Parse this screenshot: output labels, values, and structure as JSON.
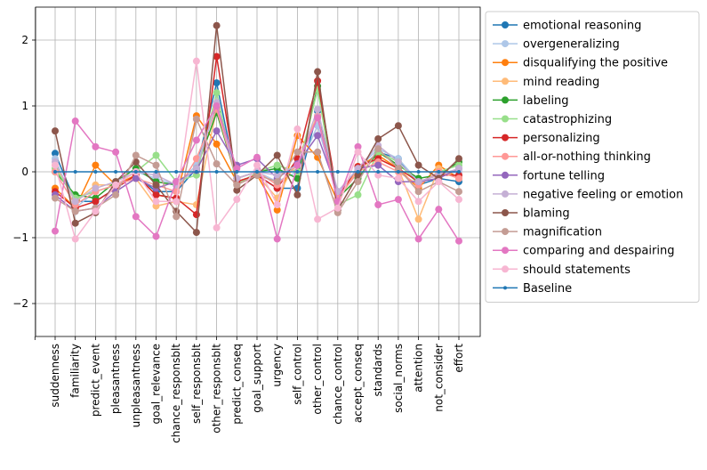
{
  "chart_data": {
    "type": "line",
    "title": "",
    "xlabel": "",
    "ylabel": "",
    "ylim": [
      -2.5,
      2.5
    ],
    "yticks": [
      -2,
      -1,
      0,
      1,
      2
    ],
    "grid": true,
    "legend_position": "outside-right",
    "categories": [
      "suddenness",
      "familiarity",
      "predict_event",
      "pleasantness",
      "unpleasantness",
      "goal_relevance",
      "chance_responsblt",
      "self_responsblt",
      "other_responsblt",
      "predict_conseq",
      "goal_support",
      "urgency",
      "self_control",
      "other_control",
      "chance_control",
      "accept_conseq",
      "standards",
      "social_norms",
      "attention",
      "not_consider",
      "effort"
    ],
    "series": [
      {
        "name": "emotional reasoning",
        "color": "#1f77b4",
        "values": [
          0.28,
          -0.45,
          -0.45,
          -0.25,
          -0.05,
          -0.3,
          -0.3,
          0.05,
          1.35,
          -0.15,
          -0.05,
          -0.25,
          -0.25,
          0.92,
          -0.4,
          0.0,
          0.3,
          0.2,
          -0.2,
          -0.1,
          -0.15
        ]
      },
      {
        "name": "overgeneralizing",
        "color": "#aec7e8",
        "values": [
          0.2,
          -0.55,
          -0.3,
          -0.2,
          0.0,
          -0.1,
          -0.2,
          0.1,
          1.0,
          -0.1,
          0.0,
          -0.15,
          0.0,
          0.7,
          -0.35,
          0.05,
          0.35,
          0.2,
          -0.15,
          -0.05,
          0.0
        ]
      },
      {
        "name": "disqualifying the positive",
        "color": "#ff7f0e",
        "values": [
          -0.25,
          -0.55,
          0.1,
          -0.2,
          -0.05,
          -0.35,
          -0.4,
          0.85,
          0.42,
          -0.15,
          -0.05,
          -0.58,
          0.55,
          0.22,
          -0.45,
          0.08,
          0.25,
          0.05,
          -0.25,
          0.1,
          -0.1
        ]
      },
      {
        "name": "mind reading",
        "color": "#ffbb78",
        "values": [
          0.1,
          -0.45,
          -0.2,
          -0.2,
          -0.1,
          -0.52,
          -0.45,
          -0.5,
          0.95,
          -0.15,
          -0.05,
          -0.4,
          0.2,
          0.85,
          -0.45,
          0.05,
          0.2,
          0.05,
          -0.72,
          0.05,
          -0.1
        ]
      },
      {
        "name": "labeling",
        "color": "#2ca02c",
        "values": [
          0.0,
          -0.35,
          -0.4,
          -0.15,
          0.05,
          -0.15,
          -0.2,
          0.05,
          0.9,
          -0.1,
          0.0,
          0.05,
          -0.1,
          1.3,
          -0.4,
          -0.1,
          0.3,
          0.1,
          -0.1,
          -0.05,
          0.15
        ]
      },
      {
        "name": "catastrophizing",
        "color": "#98df8a",
        "values": [
          0.05,
          -0.4,
          -0.3,
          -0.2,
          0.0,
          0.25,
          -0.15,
          -0.05,
          1.2,
          -0.2,
          0.0,
          0.1,
          0.0,
          1.25,
          -0.5,
          -0.35,
          0.3,
          0.15,
          -0.2,
          0.0,
          0.1
        ]
      },
      {
        "name": "personalizing",
        "color": "#d62728",
        "values": [
          -0.3,
          -0.55,
          -0.45,
          -0.25,
          -0.05,
          -0.35,
          -0.4,
          -0.65,
          1.75,
          -0.15,
          -0.05,
          -0.25,
          0.2,
          1.38,
          -0.4,
          0.08,
          0.2,
          0.05,
          -0.15,
          -0.05,
          -0.05
        ]
      },
      {
        "name": "all-or-nothing thinking",
        "color": "#ff9896",
        "values": [
          0.0,
          -0.5,
          -0.3,
          -0.2,
          -0.1,
          -0.2,
          -0.3,
          0.2,
          0.95,
          -0.1,
          0.0,
          -0.2,
          0.1,
          0.85,
          -0.4,
          0.0,
          0.15,
          0.0,
          -0.2,
          0.0,
          -0.1
        ]
      },
      {
        "name": "fortune telling",
        "color": "#9467bd",
        "values": [
          -0.35,
          -0.6,
          -0.55,
          -0.3,
          -0.1,
          -0.25,
          -0.15,
          0.02,
          0.62,
          0.1,
          0.2,
          -0.1,
          0.12,
          0.55,
          -0.3,
          0.05,
          0.1,
          -0.15,
          -0.15,
          -0.1,
          0.05
        ]
      },
      {
        "name": "negative feeling or emotion",
        "color": "#c5b0d5",
        "values": [
          0.15,
          -0.45,
          -0.25,
          -0.15,
          0.0,
          -0.05,
          -0.2,
          0.05,
          1.05,
          -0.1,
          0.0,
          -0.05,
          0.1,
          0.95,
          -0.3,
          0.05,
          0.4,
          0.15,
          -0.15,
          -0.05,
          0.05
        ]
      },
      {
        "name": "blaming",
        "color": "#8c564b",
        "values": [
          0.62,
          -0.78,
          -0.62,
          -0.15,
          0.15,
          -0.2,
          -0.6,
          -0.92,
          2.22,
          -0.28,
          -0.05,
          0.25,
          -0.35,
          1.52,
          -0.58,
          -0.05,
          0.5,
          0.7,
          0.1,
          -0.1,
          0.2
        ]
      },
      {
        "name": "magnification",
        "color": "#c49c94",
        "values": [
          -0.4,
          -0.6,
          -0.55,
          -0.35,
          0.25,
          0.1,
          -0.68,
          0.8,
          0.12,
          -0.2,
          -0.05,
          -0.15,
          0.3,
          0.3,
          -0.62,
          -0.15,
          0.35,
          0.05,
          -0.3,
          -0.15,
          -0.3
        ]
      },
      {
        "name": "comparing and despairing",
        "color": "#e377c2",
        "values": [
          -0.9,
          0.77,
          0.38,
          0.3,
          -0.68,
          -0.98,
          -0.15,
          0.48,
          1.0,
          0.05,
          0.22,
          -1.02,
          0.1,
          0.82,
          -0.45,
          0.38,
          -0.5,
          -0.42,
          -1.02,
          -0.57,
          -1.05
        ]
      },
      {
        "name": "should statements",
        "color": "#f7b6d2",
        "values": [
          0.1,
          -1.02,
          -0.6,
          -0.2,
          0.0,
          -0.45,
          -0.45,
          1.68,
          -0.85,
          -0.42,
          0.1,
          -0.5,
          0.65,
          -0.72,
          -0.55,
          0.3,
          -0.05,
          -0.1,
          -0.45,
          -0.15,
          -0.42
        ]
      },
      {
        "name": "Baseline",
        "color": "#1f77b4",
        "baseline": true,
        "values": [
          0,
          0,
          0,
          0,
          0,
          0,
          0,
          0,
          0,
          0,
          0,
          0,
          0,
          0,
          0,
          0,
          0,
          0,
          0,
          0,
          0
        ]
      }
    ]
  }
}
